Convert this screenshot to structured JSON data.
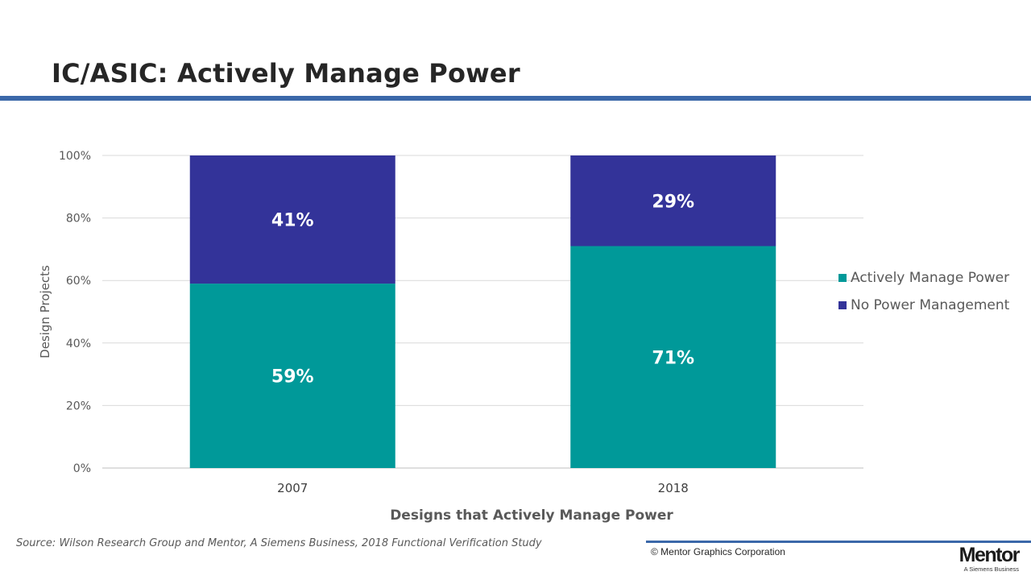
{
  "slide": {
    "title": "IC/ASIC: Actively Manage Power",
    "source": "Source:  Wilson Research Group and Mentor, A Siemens Business, 2018 Functional Verification Study",
    "copyright": "© Mentor Graphics Corporation",
    "logo": {
      "word": "Mentor",
      "sub": "A Siemens Business"
    }
  },
  "chart_data": {
    "type": "bar",
    "stacked": true,
    "categories": [
      "2007",
      "2018"
    ],
    "series": [
      {
        "name": "Actively Manage Power",
        "values": [
          59,
          71
        ],
        "labels": [
          "59%",
          "71%"
        ],
        "color": "#009999"
      },
      {
        "name": "No Power Management",
        "values": [
          41,
          29
        ],
        "labels": [
          "41%",
          "29%"
        ],
        "color": "#333399"
      }
    ],
    "xlabel": "Designs that Actively Manage Power",
    "ylabel": "Design Projects",
    "ylim": [
      0,
      100
    ],
    "yticks": [
      "0%",
      "20%",
      "40%",
      "60%",
      "80%",
      "100%"
    ],
    "grid": true,
    "legend_position": "right"
  }
}
